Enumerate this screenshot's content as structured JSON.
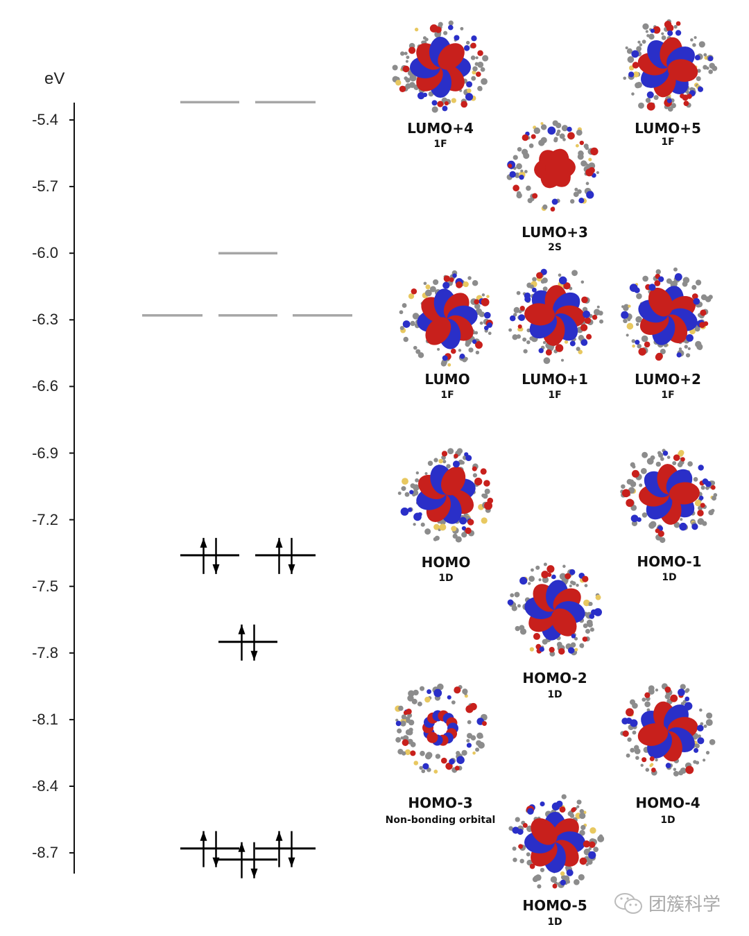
{
  "axis": {
    "unit": "eV",
    "ticks": [
      -5.4,
      -5.7,
      -6.0,
      -6.3,
      -6.6,
      -6.9,
      -7.2,
      -7.5,
      -7.8,
      -8.1,
      -8.4,
      -8.7
    ],
    "tick_labels": [
      "-5.4",
      "-5.7",
      "-6.0",
      "-6.3",
      "-6.6",
      "-6.9",
      "-7.2",
      "-7.5",
      "-7.8",
      "-8.1",
      "-8.4",
      "-8.7"
    ],
    "range": [
      -8.8,
      -5.32
    ]
  },
  "colors": {
    "unoccupied": "#a6a6a6",
    "occupied": "#000000",
    "lobe_positive": "#c8201c",
    "lobe_negative": "#2a2fc8",
    "atoms": "#8c8c8c",
    "sulfur": "#e8c860"
  },
  "levels": [
    {
      "group": "LUMO+4/LUMO+5",
      "energy": -5.32,
      "degeneracy": 2,
      "occupied": false
    },
    {
      "group": "LUMO+3",
      "energy": -6.0,
      "degeneracy": 1,
      "occupied": false
    },
    {
      "group": "LUMO/LUMO+1/LUMO+2",
      "energy": -6.28,
      "degeneracy": 3,
      "occupied": false
    },
    {
      "group": "HOMO/HOMO-1",
      "energy": -7.36,
      "degeneracy": 2,
      "occupied": true
    },
    {
      "group": "HOMO-2",
      "energy": -7.75,
      "degeneracy": 1,
      "occupied": true
    },
    {
      "group": "HOMO-4/HOMO-5",
      "energy": -8.68,
      "degeneracy": 2,
      "occupied": true
    },
    {
      "group": "HOMO-3",
      "energy": -8.73,
      "degeneracy": 1,
      "occupied": true
    }
  ],
  "orbitals": [
    {
      "name": "LUMO+4",
      "symmetry": "1F"
    },
    {
      "name": "LUMO+5",
      "symmetry": "1F"
    },
    {
      "name": "LUMO+3",
      "symmetry": "2S"
    },
    {
      "name": "LUMO",
      "symmetry": "1F"
    },
    {
      "name": "LUMO+1",
      "symmetry": "1F"
    },
    {
      "name": "LUMO+2",
      "symmetry": "1F"
    },
    {
      "name": "HOMO",
      "symmetry": "1D"
    },
    {
      "name": "HOMO-1",
      "symmetry": "1D"
    },
    {
      "name": "HOMO-2",
      "symmetry": "1D"
    },
    {
      "name": "HOMO-3",
      "symmetry": "Non-bonding orbital"
    },
    {
      "name": "HOMO-4",
      "symmetry": "1D"
    },
    {
      "name": "HOMO-5",
      "symmetry": "1D"
    }
  ],
  "watermark": {
    "text": "团簇科学",
    "icon": "wechat-icon"
  }
}
